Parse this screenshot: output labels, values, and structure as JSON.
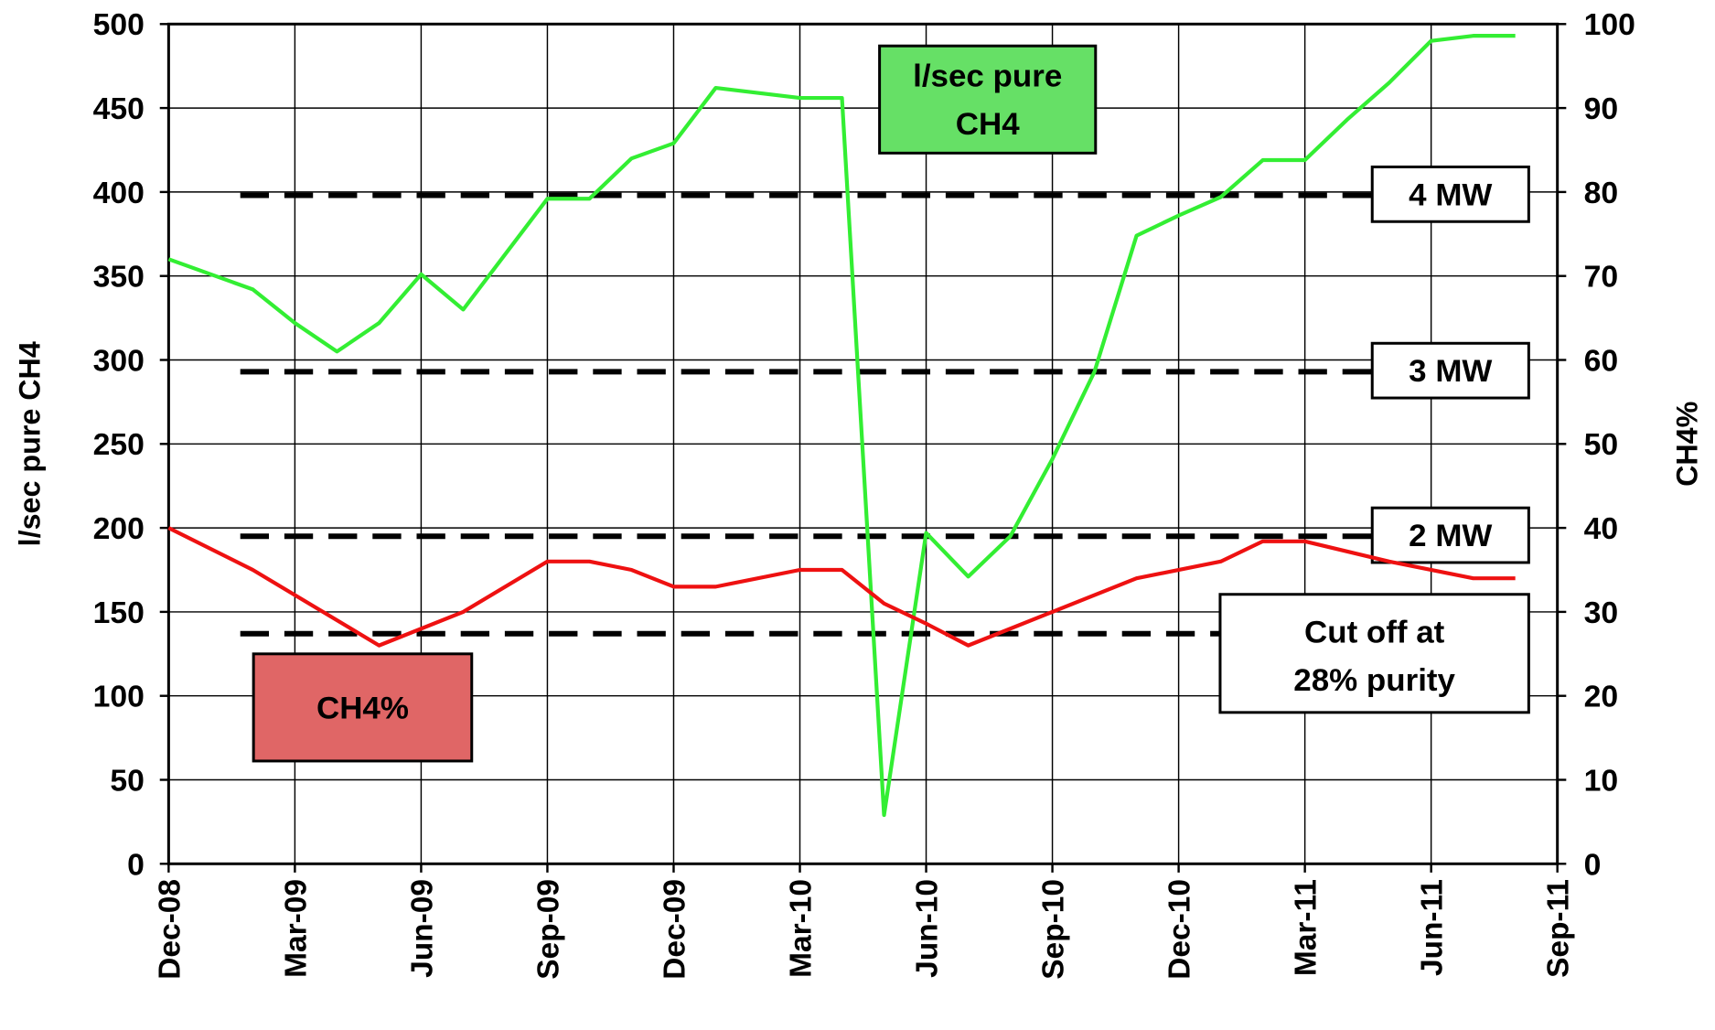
{
  "chart_data": {
    "type": "line",
    "y_label": "l/sec pure CH4",
    "y2_label": "CH4%",
    "xticks": [
      "Dec-08",
      "Mar-09",
      "Jun-09",
      "Sep-09",
      "Dec-09",
      "Mar-10",
      "Jun-10",
      "Sep-10",
      "Dec-10",
      "Mar-11",
      "Jun-11",
      "Sep-11"
    ],
    "xlim": [
      "Dec-08",
      "Sep-11"
    ],
    "ylim": [
      0,
      500
    ],
    "yticks": [
      0,
      50,
      100,
      150,
      200,
      250,
      300,
      350,
      400,
      450,
      500
    ],
    "y2lim": [
      0,
      100
    ],
    "y2ticks": [
      0,
      10,
      20,
      30,
      40,
      50,
      60,
      70,
      80,
      90,
      100
    ],
    "grid": true,
    "series": [
      {
        "color": "#33ee33",
        "axis": "y",
        "x": [
          "Dec-08",
          "Feb-09",
          "Mar-09",
          "Apr-09",
          "May-09",
          "Jun-09",
          "Jul-09",
          "Sep-09",
          "Oct-09",
          "Nov-09",
          "Dec-09",
          "Jan-10",
          "Mar-10",
          "Apr-10",
          "May-10",
          "Jun-10",
          "Jul-10",
          "Aug-10",
          "Sep-10",
          "Oct-10",
          "Nov-10",
          "Dec-10",
          "Jan-11",
          "Feb-11",
          "Mar-11",
          "Apr-11",
          "May-11",
          "Jun-11",
          "Jul-11",
          "Aug-11"
        ],
        "values": [
          360,
          342,
          322,
          305,
          322,
          351,
          330,
          396,
          396,
          420,
          429,
          462,
          456,
          456,
          29,
          197,
          171,
          195,
          241,
          293,
          374,
          386,
          397,
          419,
          419,
          443,
          465,
          490,
          493,
          493
        ]
      },
      {
        "color": "#ee1111",
        "axis": "y2",
        "x": [
          "Dec-08",
          "Feb-09",
          "May-09",
          "Jul-09",
          "Sep-09",
          "Oct-09",
          "Nov-09",
          "Dec-09",
          "Jan-10",
          "Mar-10",
          "Apr-10",
          "May-10",
          "Jun-10",
          "Jul-10",
          "Sep-10",
          "Nov-10",
          "Jan-11",
          "Feb-11",
          "Mar-11",
          "May-11",
          "Jul-11",
          "Aug-11"
        ],
        "values": [
          40,
          35,
          26,
          30,
          36,
          36,
          35,
          33,
          33,
          35,
          35,
          31,
          28.6,
          26,
          30,
          34,
          36,
          38.4,
          38.4,
          36,
          34,
          34
        ]
      }
    ],
    "reference_lines": [
      {
        "value": 398,
        "label": [
          "4 MW"
        ]
      },
      {
        "value": 293,
        "label": [
          "3 MW"
        ]
      },
      {
        "value": 195,
        "label": [
          "2 MW"
        ]
      },
      {
        "value": 137,
        "label": [
          "Cut off at",
          "28% purity"
        ]
      }
    ],
    "annotations": [
      {
        "lines": [
          "l/sec pure",
          "CH4"
        ],
        "color": "#66e066"
      },
      {
        "lines": [
          "CH4%"
        ],
        "color": "#e06666"
      }
    ]
  }
}
